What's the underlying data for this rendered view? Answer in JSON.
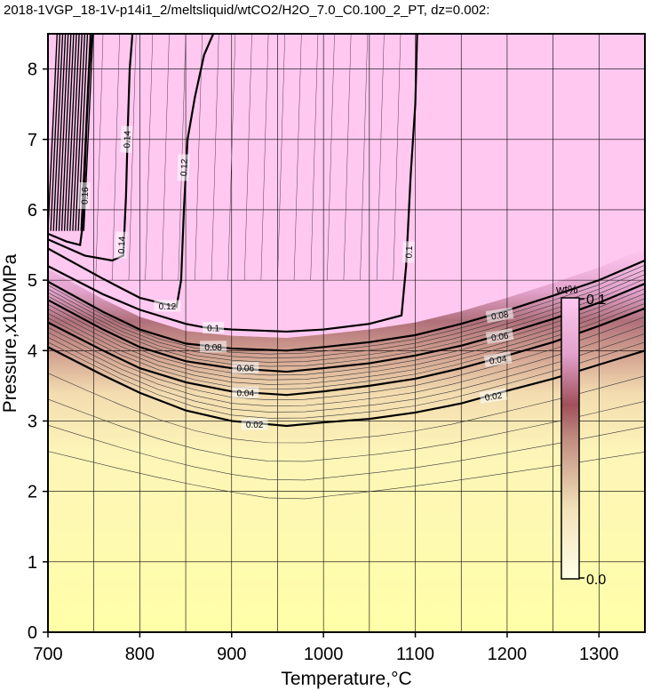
{
  "chart_data": {
    "type": "heatmap",
    "title": "2018-1VGP_18-1V-p14i1_2/meltsliquid/wtCO2/H2O_7.0_C0.100_2_PT, dz=0.002:",
    "xlabel": "Temperature,°C",
    "ylabel": "Pressure,x100MPa",
    "xlim": [
      700,
      1350
    ],
    "ylim": [
      0,
      8.5
    ],
    "x_ticks": [
      "700",
      "800",
      "900",
      "1000",
      "1100",
      "1200",
      "1300"
    ],
    "y_ticks": [
      "0",
      "1",
      "2",
      "3",
      "4",
      "5",
      "6",
      "7",
      "8"
    ],
    "grid": true,
    "colorbar": {
      "label": "wt%",
      "min_label": "0.0",
      "max_label": "0.1",
      "min": 0.0,
      "max": 0.1,
      "low_color": "#ffffc4",
      "mid_color": "#a0505a",
      "high_color": "#ffc8f0"
    },
    "contours": [
      {
        "level": 0.02,
        "label": "0.02",
        "x": [
          700,
          760,
          800,
          850,
          900,
          960,
          1000,
          1050,
          1100,
          1150,
          1200,
          1250,
          1300,
          1350
        ],
        "y": [
          4.05,
          3.65,
          3.4,
          3.15,
          3.0,
          2.93,
          2.98,
          3.03,
          3.12,
          3.25,
          3.43,
          3.6,
          3.8,
          4.0
        ]
      },
      {
        "level": 0.04,
        "label": "0.04",
        "x": [
          700,
          760,
          800,
          850,
          900,
          960,
          1000,
          1050,
          1100,
          1150,
          1200,
          1250,
          1300,
          1350
        ],
        "y": [
          4.4,
          4.0,
          3.75,
          3.55,
          3.42,
          3.37,
          3.42,
          3.5,
          3.6,
          3.75,
          3.93,
          4.12,
          4.35,
          4.6
        ]
      },
      {
        "level": 0.06,
        "label": "0.06",
        "x": [
          700,
          760,
          800,
          850,
          900,
          960,
          1000,
          1050,
          1100,
          1150,
          1200,
          1250,
          1300,
          1350
        ],
        "y": [
          4.72,
          4.3,
          4.05,
          3.85,
          3.75,
          3.7,
          3.75,
          3.82,
          3.93,
          4.07,
          4.25,
          4.45,
          4.68,
          4.95
        ]
      },
      {
        "level": 0.08,
        "label": "0.08",
        "x": [
          700,
          760,
          800,
          850,
          900,
          960,
          1000,
          1050,
          1100,
          1150,
          1200,
          1250,
          1300,
          1350
        ],
        "y": [
          4.98,
          4.55,
          4.3,
          4.1,
          4.03,
          4.0,
          4.05,
          4.12,
          4.22,
          4.38,
          4.57,
          4.78,
          5.0,
          5.28
        ]
      },
      {
        "level": 0.1,
        "label": "0.1",
        "x": [
          700,
          760,
          800,
          850,
          870,
          900,
          960,
          1000,
          1050,
          1085,
          1090,
          1095,
          1100,
          1102
        ],
        "y": [
          5.2,
          4.8,
          4.58,
          4.38,
          4.33,
          4.3,
          4.27,
          4.3,
          4.38,
          4.5,
          5.2,
          6.5,
          7.5,
          8.5
        ]
      },
      {
        "level": 0.12,
        "label": "0.12",
        "x": [
          700,
          760,
          800,
          840,
          845,
          848,
          852,
          860,
          870,
          880
        ],
        "y": [
          5.45,
          5.02,
          4.75,
          4.62,
          5.0,
          6.0,
          7.0,
          7.6,
          8.2,
          8.5
        ]
      },
      {
        "level": 0.14,
        "label": "0.14",
        "x": [
          700,
          740,
          770,
          782,
          785,
          787,
          789,
          792
        ],
        "y": [
          5.58,
          5.35,
          5.28,
          5.35,
          6.2,
          7.2,
          8.0,
          8.5
        ]
      },
      {
        "level": 0.16,
        "label": "0.16",
        "x": [
          700,
          720,
          735,
          738,
          740,
          742,
          745,
          748
        ],
        "y": [
          5.66,
          5.55,
          5.5,
          5.8,
          6.5,
          7.2,
          8.0,
          8.5
        ]
      }
    ],
    "contour_labels": [
      {
        "text": "0.02",
        "x": 925,
        "y": 2.95,
        "angle": 0
      },
      {
        "text": "0.04",
        "x": 915,
        "y": 3.4,
        "angle": 0
      },
      {
        "text": "0.06",
        "x": 915,
        "y": 3.75,
        "angle": 0
      },
      {
        "text": "0.08",
        "x": 880,
        "y": 4.05,
        "angle": 0
      },
      {
        "text": "0.1",
        "x": 880,
        "y": 4.32,
        "angle": 0
      },
      {
        "text": "0.12",
        "x": 830,
        "y": 4.63,
        "angle": 0
      },
      {
        "text": "0.02",
        "x": 1185,
        "y": 3.35,
        "angle": -9
      },
      {
        "text": "0.04",
        "x": 1190,
        "y": 3.87,
        "angle": -9
      },
      {
        "text": "0.06",
        "x": 1192,
        "y": 4.2,
        "angle": -9
      },
      {
        "text": "0.08",
        "x": 1192,
        "y": 4.5,
        "angle": -9
      },
      {
        "text": "0.1",
        "x": 1093,
        "y": 5.4,
        "angle": -88
      },
      {
        "text": "0.12",
        "x": 848,
        "y": 6.6,
        "angle": -88
      },
      {
        "text": "0.14",
        "x": 786,
        "y": 7.0,
        "angle": -88
      },
      {
        "text": "0.14",
        "x": 780,
        "y": 5.5,
        "angle": -88
      },
      {
        "text": "0.16",
        "x": 740,
        "y": 6.2,
        "angle": -88
      }
    ]
  }
}
